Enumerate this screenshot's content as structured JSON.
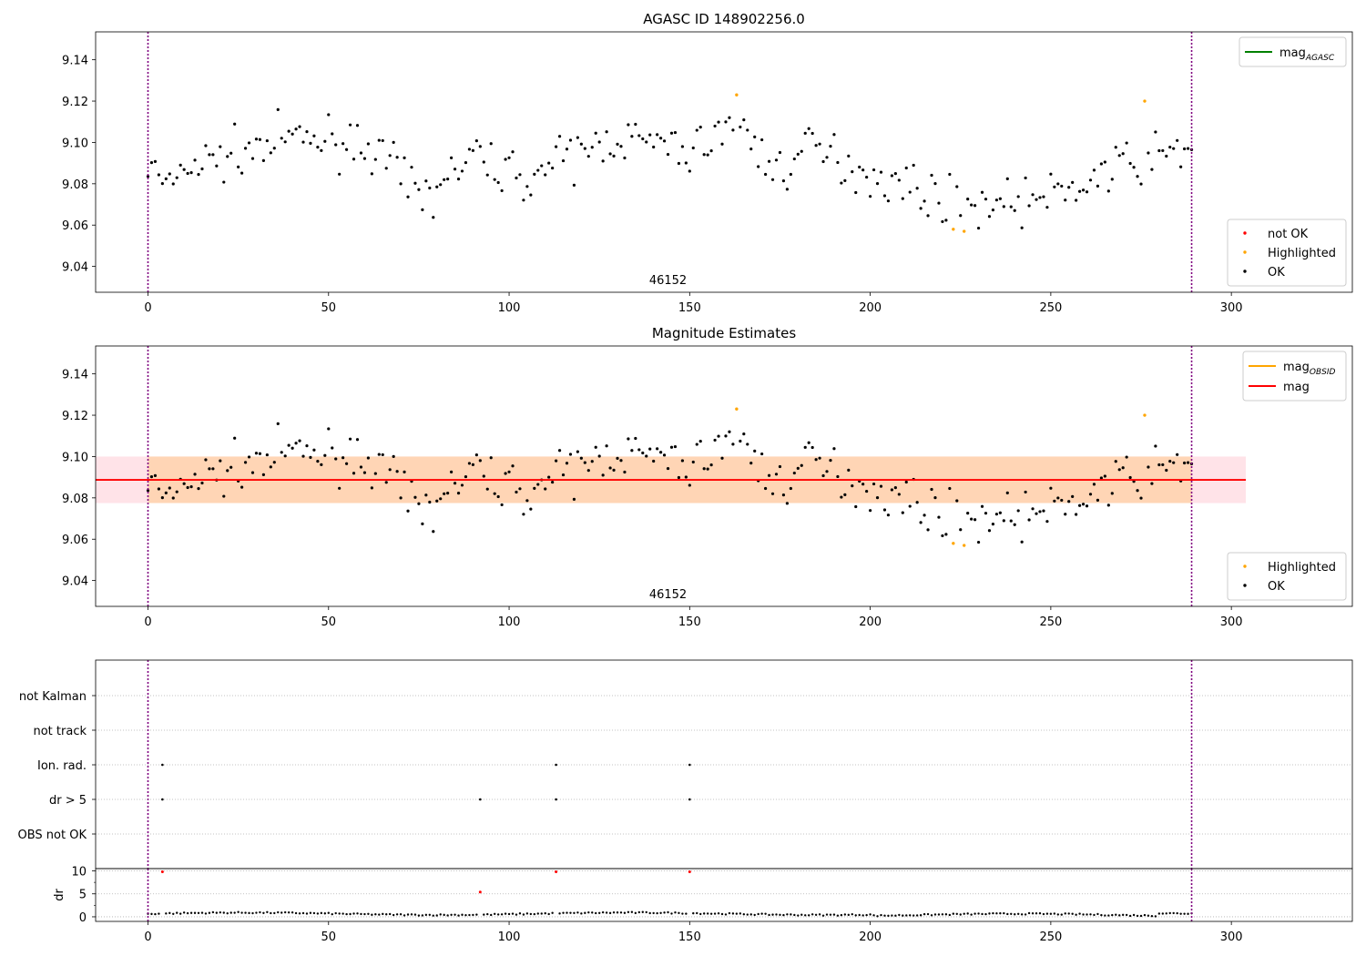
{
  "chart_data": [
    {
      "type": "scatter",
      "title": "AGASC ID 148902256.0",
      "xlim": [
        -14.5,
        333.5
      ],
      "ylim": [
        9.0275,
        9.1535
      ],
      "xticks": [
        0,
        50,
        100,
        150,
        200,
        250,
        300
      ],
      "yticks": [
        9.04,
        9.06,
        9.08,
        9.1,
        9.12,
        9.14
      ],
      "obsid_label": {
        "text": "46152",
        "x": 144
      },
      "vlines": [
        0,
        289
      ],
      "legend_lines": [
        {
          "name": "mag",
          "sub": "AGASC",
          "color": "#008000"
        }
      ],
      "legend_markers": [
        {
          "name": "not OK",
          "color": "#ff0000"
        },
        {
          "name": "Highlighted",
          "color": "#ffa500"
        },
        {
          "name": "OK",
          "color": "#000000"
        }
      ],
      "highlighted": {
        "x": [
          163,
          223,
          226,
          276
        ],
        "y": [
          9.123,
          9.058,
          9.057,
          9.12
        ]
      }
    },
    {
      "type": "scatter",
      "title": "Magnitude Estimates",
      "xlim": [
        -14.5,
        333.5
      ],
      "ylim": [
        9.0275,
        9.1535
      ],
      "xticks": [
        0,
        50,
        100,
        150,
        200,
        250,
        300
      ],
      "yticks": [
        9.04,
        9.06,
        9.08,
        9.1,
        9.12,
        9.14
      ],
      "obsid_label": {
        "text": "46152",
        "x": 144
      },
      "vlines": [
        0,
        289
      ],
      "mag_line": {
        "y": 9.0887,
        "xrange": [
          -14.5,
          304
        ],
        "color": "#ff0000"
      },
      "mag_band": {
        "ymin": 9.0775,
        "ymax": 9.1,
        "xrange": [
          -14.5,
          304
        ]
      },
      "obsid_band": {
        "ymin": 9.0775,
        "ymax": 9.1,
        "xrange": [
          0,
          289
        ]
      },
      "legend_lines": [
        {
          "name": "mag",
          "sub": "OBSID",
          "color": "#ffa500"
        },
        {
          "name": "mag",
          "sub": "",
          "color": "#ff0000"
        }
      ],
      "legend_markers": [
        {
          "name": "Highlighted",
          "color": "#ffa500"
        },
        {
          "name": "OK",
          "color": "#000000"
        }
      ],
      "highlighted": {
        "x": [
          163,
          223,
          226,
          276
        ],
        "y": [
          9.123,
          9.058,
          9.057,
          9.12
        ]
      }
    },
    {
      "type": "scatter",
      "title": "",
      "xlim": [
        -14.5,
        333.5
      ],
      "categories": [
        "not Kalman",
        "not track",
        "Ion. rad.",
        "dr > 5",
        "OBS not OK"
      ],
      "vlines": [
        0,
        289
      ],
      "flags": [
        {
          "category": "Ion. rad.",
          "x": [
            4,
            113,
            150
          ]
        },
        {
          "category": "dr > 5",
          "x": [
            4,
            92,
            113,
            150
          ]
        }
      ]
    },
    {
      "type": "scatter",
      "title": "",
      "ylabel": "dr",
      "xlim": [
        -14.5,
        333.5
      ],
      "ylim": [
        -1,
        10.5
      ],
      "xticks": [
        0,
        50,
        100,
        150,
        200,
        250,
        300
      ],
      "yticks": [
        0,
        5,
        10
      ],
      "vlines": [
        0,
        289
      ],
      "outliers": {
        "x": [
          4,
          92,
          113,
          150
        ],
        "y": [
          9.8,
          5.4,
          9.8,
          9.8
        ]
      }
    }
  ]
}
